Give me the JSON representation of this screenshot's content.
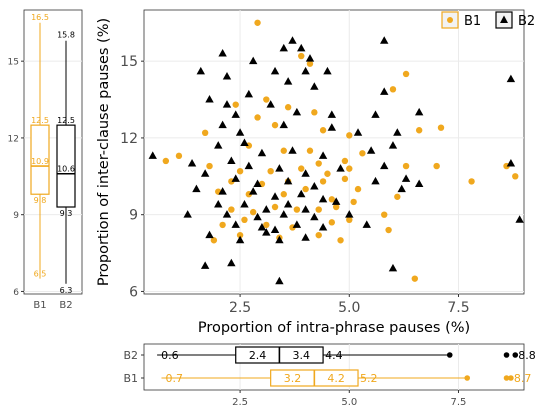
{
  "colors": {
    "b1": "#f0a81e",
    "b2": "#000000",
    "grid": "#ebebeb",
    "frame": "#333333",
    "axis_text": "#4d4d4d"
  },
  "legend": {
    "items": [
      {
        "label": "B1",
        "shape": "circle"
      },
      {
        "label": "B2",
        "shape": "triangle"
      }
    ]
  },
  "chart_data": [
    {
      "type": "scatter",
      "xlabel": "Proportion of intra-phrase pauses (%)",
      "ylabel": "Proportion of inter-clause pauses (%)",
      "xlim": [
        0.3,
        9.0
      ],
      "ylim": [
        5.9,
        17.0
      ],
      "xticks": [
        2.5,
        5.0,
        7.5
      ],
      "xtick_labels": [
        "2.5",
        "5.0",
        "7.5"
      ],
      "yticks": [
        6,
        9,
        12,
        15
      ],
      "ytick_labels": [
        "6",
        "9",
        "12",
        "15"
      ],
      "grid": true,
      "legend_position": "top-right",
      "series": [
        {
          "name": "B1",
          "marker": "circle",
          "points": [
            [
              2.9,
              16.5
            ],
            [
              3.9,
              15.2
            ],
            [
              4.1,
              14.9
            ],
            [
              6.3,
              14.5
            ],
            [
              6.0,
              13.9
            ],
            [
              3.1,
              13.5
            ],
            [
              2.4,
              13.3
            ],
            [
              3.6,
              13.2
            ],
            [
              4.2,
              13.0
            ],
            [
              1.7,
              12.2
            ],
            [
              3.3,
              12.5
            ],
            [
              2.9,
              12.8
            ],
            [
              4.4,
              12.3
            ],
            [
              5.0,
              12.1
            ],
            [
              6.6,
              12.3
            ],
            [
              7.1,
              12.4
            ],
            [
              0.8,
              11.1
            ],
            [
              1.1,
              11.3
            ],
            [
              2.7,
              11.7
            ],
            [
              3.5,
              11.5
            ],
            [
              4.1,
              11.5
            ],
            [
              4.3,
              11.0
            ],
            [
              4.9,
              11.1
            ],
            [
              5.3,
              11.4
            ],
            [
              1.8,
              10.9
            ],
            [
              2.5,
              10.7
            ],
            [
              3.2,
              10.7
            ],
            [
              3.9,
              10.8
            ],
            [
              4.5,
              10.6
            ],
            [
              5.0,
              10.8
            ],
            [
              6.3,
              10.9
            ],
            [
              7.0,
              10.9
            ],
            [
              8.6,
              10.9
            ],
            [
              8.8,
              10.5
            ],
            [
              2.3,
              10.3
            ],
            [
              3.0,
              10.2
            ],
            [
              3.6,
              10.3
            ],
            [
              4.4,
              10.3
            ],
            [
              4.9,
              10.4
            ],
            [
              5.2,
              10.0
            ],
            [
              7.8,
              10.3
            ],
            [
              2.0,
              9.9
            ],
            [
              2.7,
              9.8
            ],
            [
              3.5,
              9.8
            ],
            [
              4.0,
              10.0
            ],
            [
              4.6,
              9.6
            ],
            [
              5.1,
              9.5
            ],
            [
              6.1,
              9.7
            ],
            [
              2.3,
              9.2
            ],
            [
              2.8,
              9.1
            ],
            [
              3.3,
              9.3
            ],
            [
              3.8,
              9.2
            ],
            [
              4.3,
              9.2
            ],
            [
              4.7,
              9.3
            ],
            [
              5.8,
              9.0
            ],
            [
              2.1,
              8.6
            ],
            [
              2.6,
              8.8
            ],
            [
              3.1,
              8.6
            ],
            [
              3.7,
              8.5
            ],
            [
              4.6,
              8.7
            ],
            [
              5.0,
              8.8
            ],
            [
              5.9,
              8.4
            ],
            [
              1.9,
              8.0
            ],
            [
              2.5,
              8.2
            ],
            [
              3.4,
              8.1
            ],
            [
              4.3,
              8.2
            ],
            [
              4.8,
              8.0
            ],
            [
              6.5,
              6.5
            ]
          ],
          "boxplot_y": {
            "min": 6.5,
            "q1": 9.8,
            "median": 10.9,
            "q3": 12.5,
            "max": 16.5
          },
          "boxplot_x": {
            "min": 0.7,
            "q1": 3.2,
            "median": 4.2,
            "q3": 5.2,
            "max": 7.7,
            "outliers": [
              8.6,
              8.7
            ]
          },
          "labels_y": {
            "min": "6.5",
            "q1": "9.8",
            "median": "10.9",
            "q3": "12.5",
            "max": "16.5"
          },
          "labels_x": {
            "min": "0.7",
            "q1": "3.2",
            "median": "4.2",
            "q3": "5.2",
            "outlier": "8.7"
          }
        },
        {
          "name": "B2",
          "marker": "triangle",
          "points": [
            [
              2.1,
              15.3
            ],
            [
              3.7,
              15.8
            ],
            [
              3.5,
              15.5
            ],
            [
              3.9,
              15.5
            ],
            [
              5.8,
              15.8
            ],
            [
              2.8,
              15.0
            ],
            [
              4.1,
              15.1
            ],
            [
              1.6,
              14.6
            ],
            [
              2.2,
              14.4
            ],
            [
              3.3,
              14.6
            ],
            [
              4.0,
              14.6
            ],
            [
              4.5,
              14.6
            ],
            [
              8.7,
              14.3
            ],
            [
              1.8,
              13.5
            ],
            [
              2.7,
              13.7
            ],
            [
              3.6,
              14.2
            ],
            [
              4.2,
              14.0
            ],
            [
              5.8,
              13.8
            ],
            [
              2.2,
              13.3
            ],
            [
              2.4,
              12.9
            ],
            [
              3.2,
              13.3
            ],
            [
              3.8,
              13.0
            ],
            [
              4.6,
              12.9
            ],
            [
              5.6,
              12.9
            ],
            [
              6.6,
              13.0
            ],
            [
              2.1,
              12.5
            ],
            [
              2.5,
              12.2
            ],
            [
              3.5,
              12.5
            ],
            [
              4.6,
              12.4
            ],
            [
              5.2,
              12.2
            ],
            [
              6.1,
              12.2
            ],
            [
              2.0,
              11.7
            ],
            [
              2.6,
              11.8
            ],
            [
              3.0,
              11.4
            ],
            [
              3.7,
              11.5
            ],
            [
              4.4,
              11.3
            ],
            [
              5.5,
              11.5
            ],
            [
              6.0,
              11.7
            ],
            [
              0.5,
              11.3
            ],
            [
              1.4,
              11.0
            ],
            [
              2.3,
              11.1
            ],
            [
              2.7,
              10.9
            ],
            [
              3.4,
              10.8
            ],
            [
              4.0,
              10.6
            ],
            [
              4.8,
              10.8
            ],
            [
              5.8,
              10.9
            ],
            [
              8.7,
              11.0
            ],
            [
              1.7,
              10.6
            ],
            [
              2.4,
              10.4
            ],
            [
              2.9,
              10.2
            ],
            [
              3.6,
              10.3
            ],
            [
              4.2,
              10.1
            ],
            [
              5.6,
              10.3
            ],
            [
              6.3,
              10.4
            ],
            [
              1.5,
              10.0
            ],
            [
              2.1,
              9.9
            ],
            [
              2.8,
              9.9
            ],
            [
              3.3,
              9.7
            ],
            [
              3.9,
              9.8
            ],
            [
              4.4,
              9.6
            ],
            [
              6.2,
              10.0
            ],
            [
              6.6,
              10.2
            ],
            [
              2.0,
              9.4
            ],
            [
              2.6,
              9.4
            ],
            [
              3.1,
              9.2
            ],
            [
              3.6,
              9.4
            ],
            [
              4.0,
              9.2
            ],
            [
              4.7,
              9.5
            ],
            [
              1.3,
              9.0
            ],
            [
              2.2,
              9.0
            ],
            [
              2.9,
              8.9
            ],
            [
              3.5,
              9.0
            ],
            [
              4.2,
              8.9
            ],
            [
              5.0,
              9.0
            ],
            [
              2.4,
              8.6
            ],
            [
              3.0,
              8.5
            ],
            [
              3.3,
              8.4
            ],
            [
              3.8,
              8.6
            ],
            [
              4.4,
              8.5
            ],
            [
              5.4,
              8.6
            ],
            [
              8.9,
              8.8
            ],
            [
              1.8,
              8.2
            ],
            [
              2.5,
              8.0
            ],
            [
              3.1,
              8.3
            ],
            [
              3.4,
              8.0
            ],
            [
              4.0,
              8.1
            ],
            [
              1.7,
              7.0
            ],
            [
              2.3,
              7.1
            ],
            [
              6.0,
              6.9
            ],
            [
              3.4,
              6.4
            ]
          ],
          "boxplot_y": {
            "min": 6.3,
            "q1": 9.3,
            "median": 10.6,
            "q3": 12.5,
            "max": 15.8
          },
          "boxplot_x": {
            "min": 0.6,
            "q1": 2.4,
            "median": 3.4,
            "q3": 4.4,
            "max": 7.3,
            "outliers": [
              8.6,
              8.8
            ]
          },
          "labels_y": {
            "min": "6.3",
            "q1": "9.3",
            "median": "10.6",
            "q3": "12.5",
            "max": "15.8"
          },
          "labels_x": {
            "min": "0.6",
            "q1": "2.4",
            "median": "3.4",
            "q3": "4.4",
            "outlier": "8.8"
          }
        }
      ]
    },
    {
      "type": "boxplot",
      "orientation": "vertical",
      "categories": [
        "B1",
        "B2"
      ],
      "ylim": [
        5.9,
        17.0
      ],
      "yticks": [
        6,
        9,
        12,
        15
      ],
      "ytick_labels": [
        "6",
        "9",
        "12",
        "15"
      ]
    },
    {
      "type": "boxplot",
      "orientation": "horizontal",
      "categories": [
        "B2",
        "B1"
      ],
      "xlim": [
        0.3,
        9.0
      ],
      "xticks": [
        2.5,
        5.0,
        7.5
      ],
      "xtick_labels": [
        "2.5",
        "5.0",
        "7.5"
      ]
    }
  ]
}
